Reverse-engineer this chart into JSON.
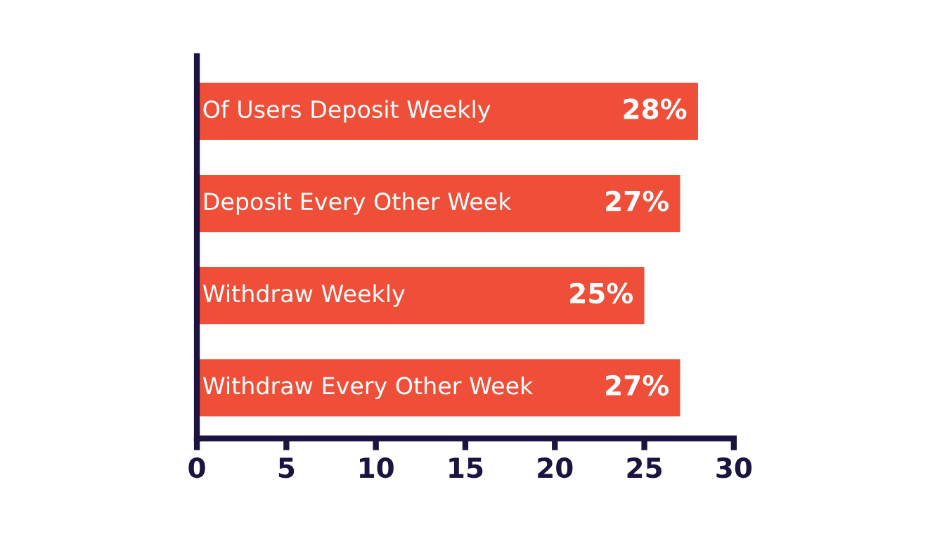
{
  "chart_data": {
    "type": "bar",
    "orientation": "horizontal",
    "categories": [
      "Of Users Deposit Weekly",
      "Deposit Every Other Week",
      "Withdraw Weekly",
      "Withdraw Every Other Week"
    ],
    "values": [
      28,
      27,
      25,
      27
    ],
    "value_labels": [
      "28%",
      "27%",
      "25%",
      "27%"
    ],
    "color": "#ef4f38",
    "xlim": [
      0,
      30
    ],
    "xticks": [
      0,
      5,
      10,
      15,
      20,
      25,
      30
    ],
    "grid": false,
    "legend": false
  }
}
